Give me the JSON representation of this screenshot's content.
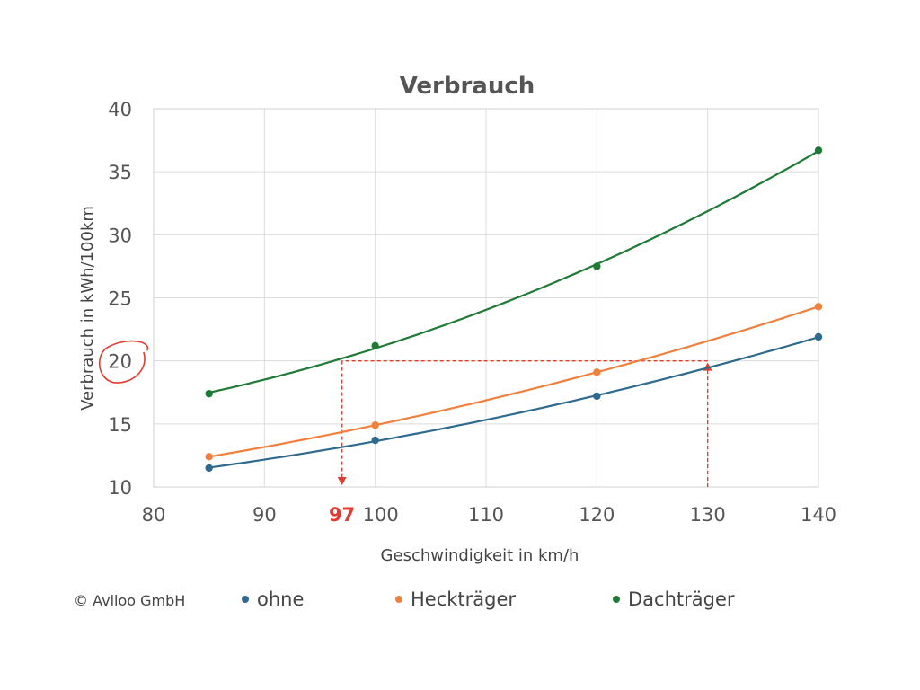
{
  "chart_data": {
    "type": "line",
    "title": "Verbrauch",
    "xlabel": "Geschwindigkeit in km/h",
    "ylabel": "Verbrauch in kWh/100km",
    "xlim": [
      80,
      140
    ],
    "ylim": [
      10,
      40
    ],
    "x_ticks": [
      80,
      90,
      100,
      110,
      120,
      130,
      140
    ],
    "y_ticks": [
      10,
      15,
      20,
      25,
      30,
      35,
      40
    ],
    "grid": true,
    "legend_position": "bottom",
    "series": [
      {
        "name": "ohne",
        "color": "#2e6a8e",
        "points": [
          [
            85,
            11.5
          ],
          [
            100,
            13.7
          ],
          [
            120,
            17.2
          ],
          [
            140,
            21.9
          ]
        ]
      },
      {
        "name": "Heckträger",
        "color": "#f0803c",
        "points": [
          [
            85,
            12.4
          ],
          [
            100,
            14.9
          ],
          [
            120,
            19.1
          ],
          [
            140,
            24.3
          ]
        ]
      },
      {
        "name": "Dachträger",
        "color": "#1f7a35",
        "points": [
          [
            85,
            17.4
          ],
          [
            100,
            21.2
          ],
          [
            120,
            27.5
          ],
          [
            140,
            36.7
          ]
        ]
      }
    ],
    "annotation": {
      "color": "#e03c31",
      "level_y": 20,
      "from_x": 130,
      "to_x": 97,
      "highlight_tick": "97",
      "circled_tick": "20"
    },
    "copyright": "© Aviloo GmbH"
  }
}
